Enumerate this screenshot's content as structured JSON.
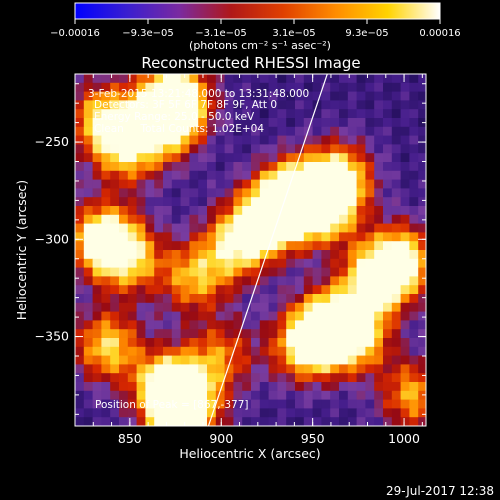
{
  "colorbar": {
    "colors": [
      "#0000ff",
      "#3a1fd0",
      "#7a2aa0",
      "#b01818",
      "#e04000",
      "#ff8c00",
      "#ffd300",
      "#ffffff"
    ],
    "tick_labels": [
      "−0.00016",
      "−9.3e−05",
      "−3.1e−05",
      "3.1e−05",
      "9.3e−05",
      "0.00016"
    ],
    "units": "(photons cm⁻² s⁻¹ asec⁻²)"
  },
  "title": "Reconstructed RHESSI Image",
  "info_lines": [
    "3-Feb-2015 13:21:48.000 to 13:31:48.000",
    "Detectors: 3F 5F 6F 7F 8F 9F, Att 0",
    "Energy Range: 25.0 - 50.0 keV",
    "Clean     Total Counts: 1.02E+04"
  ],
  "peak_label": "Position of Peak = [867,-377]",
  "axes": {
    "xlabel": "Heliocentric X (arcsec)",
    "ylabel": "Heliocentric Y (arcsec)",
    "xticks": [
      {
        "label": "850",
        "value": 850
      },
      {
        "label": "900",
        "value": 900
      },
      {
        "label": "950",
        "value": 950
      },
      {
        "label": "1000",
        "value": 1000
      }
    ],
    "yticks": [
      {
        "label": "−250",
        "value": -250
      },
      {
        "label": "−300",
        "value": -300
      },
      {
        "label": "−350",
        "value": -350
      }
    ],
    "xlim": [
      820,
      1012
    ],
    "ylim": [
      -396,
      -215
    ]
  },
  "limb_line": {
    "x": [
      893,
      958
    ],
    "y": [
      -396,
      -215
    ]
  },
  "blobs": [
    {
      "x": 875,
      "y": -228,
      "v": 1.0
    },
    {
      "x": 868,
      "y": -240,
      "v": 0.8
    },
    {
      "x": 848,
      "y": -255,
      "v": 0.6
    },
    {
      "x": 835,
      "y": -238,
      "v": 0.7
    },
    {
      "x": 938,
      "y": -278,
      "v": 0.9
    },
    {
      "x": 955,
      "y": -282,
      "v": 1.0
    },
    {
      "x": 965,
      "y": -268,
      "v": 0.7
    },
    {
      "x": 925,
      "y": -290,
      "v": 0.8
    },
    {
      "x": 908,
      "y": -303,
      "v": 0.7
    },
    {
      "x": 835,
      "y": -300,
      "v": 0.9
    },
    {
      "x": 850,
      "y": -310,
      "v": 0.6
    },
    {
      "x": 885,
      "y": -320,
      "v": 0.6
    },
    {
      "x": 985,
      "y": -320,
      "v": 0.9
    },
    {
      "x": 1000,
      "y": -310,
      "v": 0.7
    },
    {
      "x": 960,
      "y": -345,
      "v": 1.0
    },
    {
      "x": 945,
      "y": -355,
      "v": 0.7
    },
    {
      "x": 975,
      "y": -350,
      "v": 0.6
    },
    {
      "x": 838,
      "y": -355,
      "v": 0.7
    },
    {
      "x": 872,
      "y": -377,
      "v": 1.0
    },
    {
      "x": 880,
      "y": -388,
      "v": 0.9
    },
    {
      "x": 900,
      "y": -360,
      "v": 0.5
    },
    {
      "x": 1005,
      "y": -380,
      "v": 0.6
    }
  ],
  "timestamp": "29-Jul-2017 12:38"
}
